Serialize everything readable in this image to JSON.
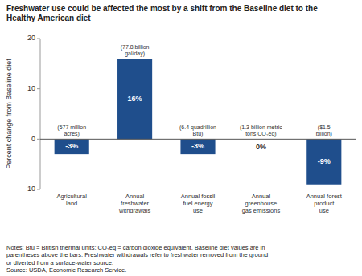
{
  "chart_data": {
    "type": "bar",
    "title": "Freshwater use could be affected the most by a shift from the Baseline diet to the\nHealthy American diet",
    "y_label": "Percent change from Baseline diet",
    "categories": [
      "Agricultural\nland",
      "Annual\nfreshwater\nwithdrawals",
      "Annual fossil\nfuel energy\nuse",
      "Annual\ngreenhouse\ngas emissions",
      "Annual forest\nproduct\nuse"
    ],
    "values": [
      -3,
      16,
      -3,
      0,
      -9
    ],
    "value_labels": [
      "-3%",
      "16%",
      "-3%",
      "0%",
      "-9%"
    ],
    "data_labels": true,
    "color": "#1F4E8C",
    "ylim": [
      -10,
      20
    ],
    "yticks": [
      -10,
      0,
      10,
      20
    ],
    "grid": false,
    "annotations": [
      "(577 million\nacres)",
      "(77.8 billion\ngal/day)",
      "(6.4 quadrillion\nBtu)",
      "(1.3 billion metric\ntons CO₂eq)",
      "($1.5\nbillion)"
    ],
    "notes": "Notes: Btu = British thermal units; CO₂eq = carbon dioxide equivalent. Baseline diet values are in\nparentheses above the bars. Freshwater withdrawals refer to freshwater removed from the ground\nor diverted from a surface-water source.\nSource: USDA, Economic Research Service."
  }
}
